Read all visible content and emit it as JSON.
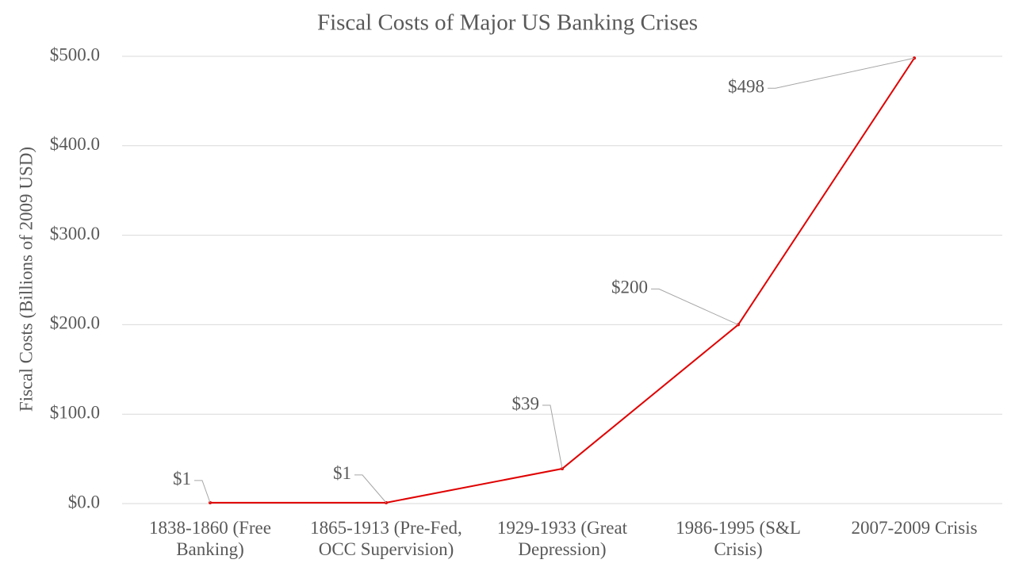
{
  "chart_data": {
    "type": "line",
    "title": "Fiscal Costs of Major US Banking Crises",
    "y_label": "Fiscal Costs (Billions of 2009 USD)",
    "categories": [
      "1838-1860 (Free Banking)",
      "1865-1913 (Pre-Fed, OCC Supervision)",
      "1929-1933 (Great Depression)",
      "1986-1995 (S&L Crisis)",
      "2007-2009 Crisis"
    ],
    "series": [
      {
        "name": "Fiscal Costs",
        "color": "#e00000",
        "values": [
          1,
          1,
          39,
          200,
          498
        ],
        "value_labels": [
          "$1",
          "$1",
          "$39",
          "$200",
          "$498"
        ]
      }
    ],
    "ylim": [
      0,
      500
    ],
    "yticks": [
      {
        "value": 0,
        "label": "$0.0"
      },
      {
        "value": 100,
        "label": "$100.0"
      },
      {
        "value": 200,
        "label": "$200.0"
      },
      {
        "value": 300,
        "label": "$300.0"
      },
      {
        "value": 400,
        "label": "$400.0"
      },
      {
        "value": 500,
        "label": "$500.0"
      }
    ],
    "grid": true
  }
}
